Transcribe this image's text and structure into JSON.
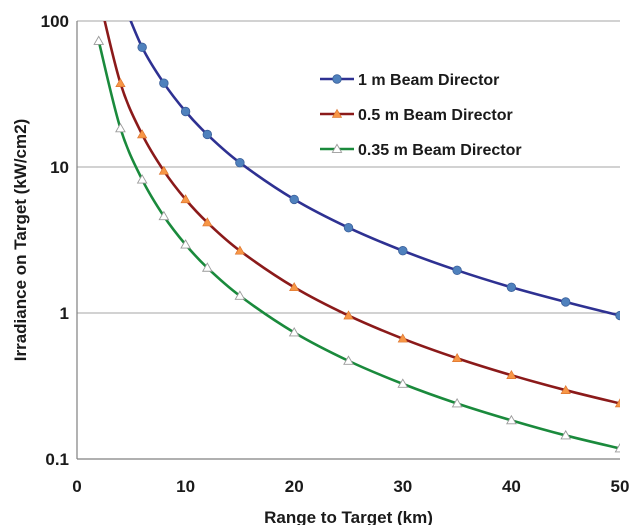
{
  "chart_data": {
    "type": "line",
    "title": "",
    "xlabel": "Range to Target (km)",
    "ylabel": "Irradiance on Target (kW/cm2)",
    "xlim": [
      0,
      50
    ],
    "ylim": [
      0.1,
      100
    ],
    "yscale": "log",
    "grid": "horizontal",
    "legend_position": "top-right",
    "xticks": [
      "0",
      "10",
      "20",
      "30",
      "40",
      "50"
    ],
    "yticks": [
      "0.1",
      "1",
      "10",
      "100"
    ],
    "series": [
      {
        "name": "1 m Beam Director",
        "color": "#2e3192",
        "marker_color": "#4f81bd",
        "marker": "circle",
        "x": [
          4,
          6,
          8,
          10,
          12,
          15,
          20,
          25,
          30,
          35,
          40,
          45,
          50
        ],
        "y": [
          150,
          66,
          37.5,
          24,
          16.7,
          10.7,
          6.0,
          3.84,
          2.67,
          1.96,
          1.5,
          1.19,
          0.96
        ]
      },
      {
        "name": "0.5 m Beam Director",
        "color": "#8b1a1a",
        "marker_color": "#f79646",
        "marker": "triangle",
        "x": [
          2,
          4,
          6,
          8,
          10,
          12,
          15,
          20,
          25,
          30,
          35,
          40,
          45,
          50
        ],
        "y": [
          150,
          37.5,
          16.7,
          9.4,
          6.0,
          4.17,
          2.67,
          1.5,
          0.96,
          0.667,
          0.49,
          0.375,
          0.296,
          0.24
        ]
      },
      {
        "name": "0.35 m Beam Director",
        "color": "#1a8a3c",
        "marker_color": "#ffffff",
        "marker": "triangle-open",
        "x": [
          2,
          4,
          6,
          8,
          10,
          12,
          15,
          20,
          25,
          30,
          35,
          40,
          45,
          50
        ],
        "y": [
          73,
          18.4,
          8.2,
          4.6,
          2.94,
          2.04,
          1.31,
          0.735,
          0.47,
          0.327,
          0.24,
          0.184,
          0.145,
          0.118
        ]
      }
    ]
  }
}
